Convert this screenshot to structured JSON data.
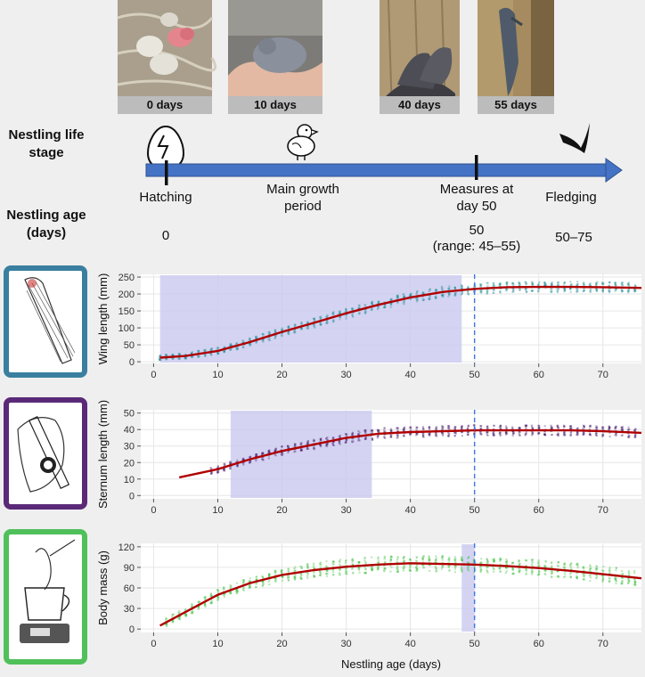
{
  "photos": [
    {
      "label": "0 days"
    },
    {
      "label": "10 days"
    },
    {
      "label": "40 days"
    },
    {
      "label": "55 days"
    }
  ],
  "row_labels": {
    "life_stage": "Nestling life\nstage",
    "age": "Nestling age\n(days)"
  },
  "timeline": {
    "events": [
      "Hatching",
      "Main growth\nperiod",
      "Measures at\nday 50",
      "Fledging"
    ],
    "ages": [
      "0",
      "50\n(range: 45–55)",
      "50–75"
    ]
  },
  "icons": {
    "egg": "cracked-egg-icon",
    "chick": "chick-icon",
    "swift": "flying-swift-icon"
  },
  "colors": {
    "timeline": "#4472c4",
    "trend": "#b00000",
    "highlight": "#c9c9ef",
    "vline": "#3a78e0",
    "wing_frame": "#3a7fa0",
    "sternum_frame": "#5a2a78",
    "mass_frame": "#4fc05a"
  },
  "chart_data": [
    {
      "type": "line",
      "ylabel": "Wing length (mm)",
      "xlim": [
        -2,
        76
      ],
      "ylim": [
        -5,
        258
      ],
      "xticks": [
        0,
        10,
        20,
        30,
        40,
        50,
        60,
        70
      ],
      "yticks": [
        0,
        50,
        100,
        150,
        200,
        250
      ],
      "highlight": [
        1,
        48
      ],
      "vline": 50,
      "trend": [
        [
          1,
          12
        ],
        [
          5,
          17
        ],
        [
          10,
          32
        ],
        [
          15,
          58
        ],
        [
          20,
          88
        ],
        [
          25,
          115
        ],
        [
          30,
          143
        ],
        [
          35,
          168
        ],
        [
          40,
          190
        ],
        [
          45,
          206
        ],
        [
          50,
          215
        ],
        [
          55,
          220
        ],
        [
          60,
          221
        ],
        [
          65,
          221
        ],
        [
          70,
          220
        ],
        [
          76,
          218
        ]
      ],
      "dots_color": "#2a8f9a",
      "spread": 0.12,
      "dots_from": 1
    },
    {
      "type": "line",
      "ylabel": "Sternum length (mm)",
      "xlim": [
        -2,
        76
      ],
      "ylim": [
        -2,
        52
      ],
      "xticks": [
        0,
        10,
        20,
        30,
        40,
        50,
        60,
        70
      ],
      "yticks": [
        0,
        10,
        20,
        30,
        40,
        50
      ],
      "highlight": [
        12,
        34
      ],
      "vline": 50,
      "trend": [
        [
          4,
          11
        ],
        [
          10,
          16
        ],
        [
          15,
          22
        ],
        [
          20,
          27
        ],
        [
          25,
          31
        ],
        [
          30,
          35
        ],
        [
          35,
          37.5
        ],
        [
          40,
          38.5
        ],
        [
          45,
          39
        ],
        [
          50,
          39.5
        ],
        [
          55,
          39.5
        ],
        [
          60,
          39.5
        ],
        [
          65,
          39.5
        ],
        [
          70,
          39
        ],
        [
          76,
          38
        ]
      ],
      "dots_color": "#4a1d6e",
      "spread": 0.12,
      "dots_from": 9
    },
    {
      "type": "line",
      "ylabel": "Body mass (g)",
      "xlim": [
        -2,
        76
      ],
      "ylim": [
        -5,
        125
      ],
      "xticks": [
        0,
        10,
        20,
        30,
        40,
        50,
        60,
        70
      ],
      "yticks": [
        0,
        30,
        60,
        90,
        120
      ],
      "highlight": [
        48,
        50
      ],
      "vline": 50,
      "xlabel": "Nestling age (days)",
      "trend": [
        [
          1,
          5
        ],
        [
          5,
          25
        ],
        [
          10,
          50
        ],
        [
          15,
          67
        ],
        [
          20,
          79
        ],
        [
          25,
          86
        ],
        [
          30,
          91
        ],
        [
          35,
          94
        ],
        [
          40,
          96
        ],
        [
          45,
          95
        ],
        [
          50,
          94
        ],
        [
          55,
          92
        ],
        [
          60,
          89
        ],
        [
          65,
          85
        ],
        [
          70,
          80
        ],
        [
          76,
          74
        ]
      ],
      "dots_color": "#3fbf3f",
      "spread": 0.18,
      "dots_from": 2
    }
  ]
}
